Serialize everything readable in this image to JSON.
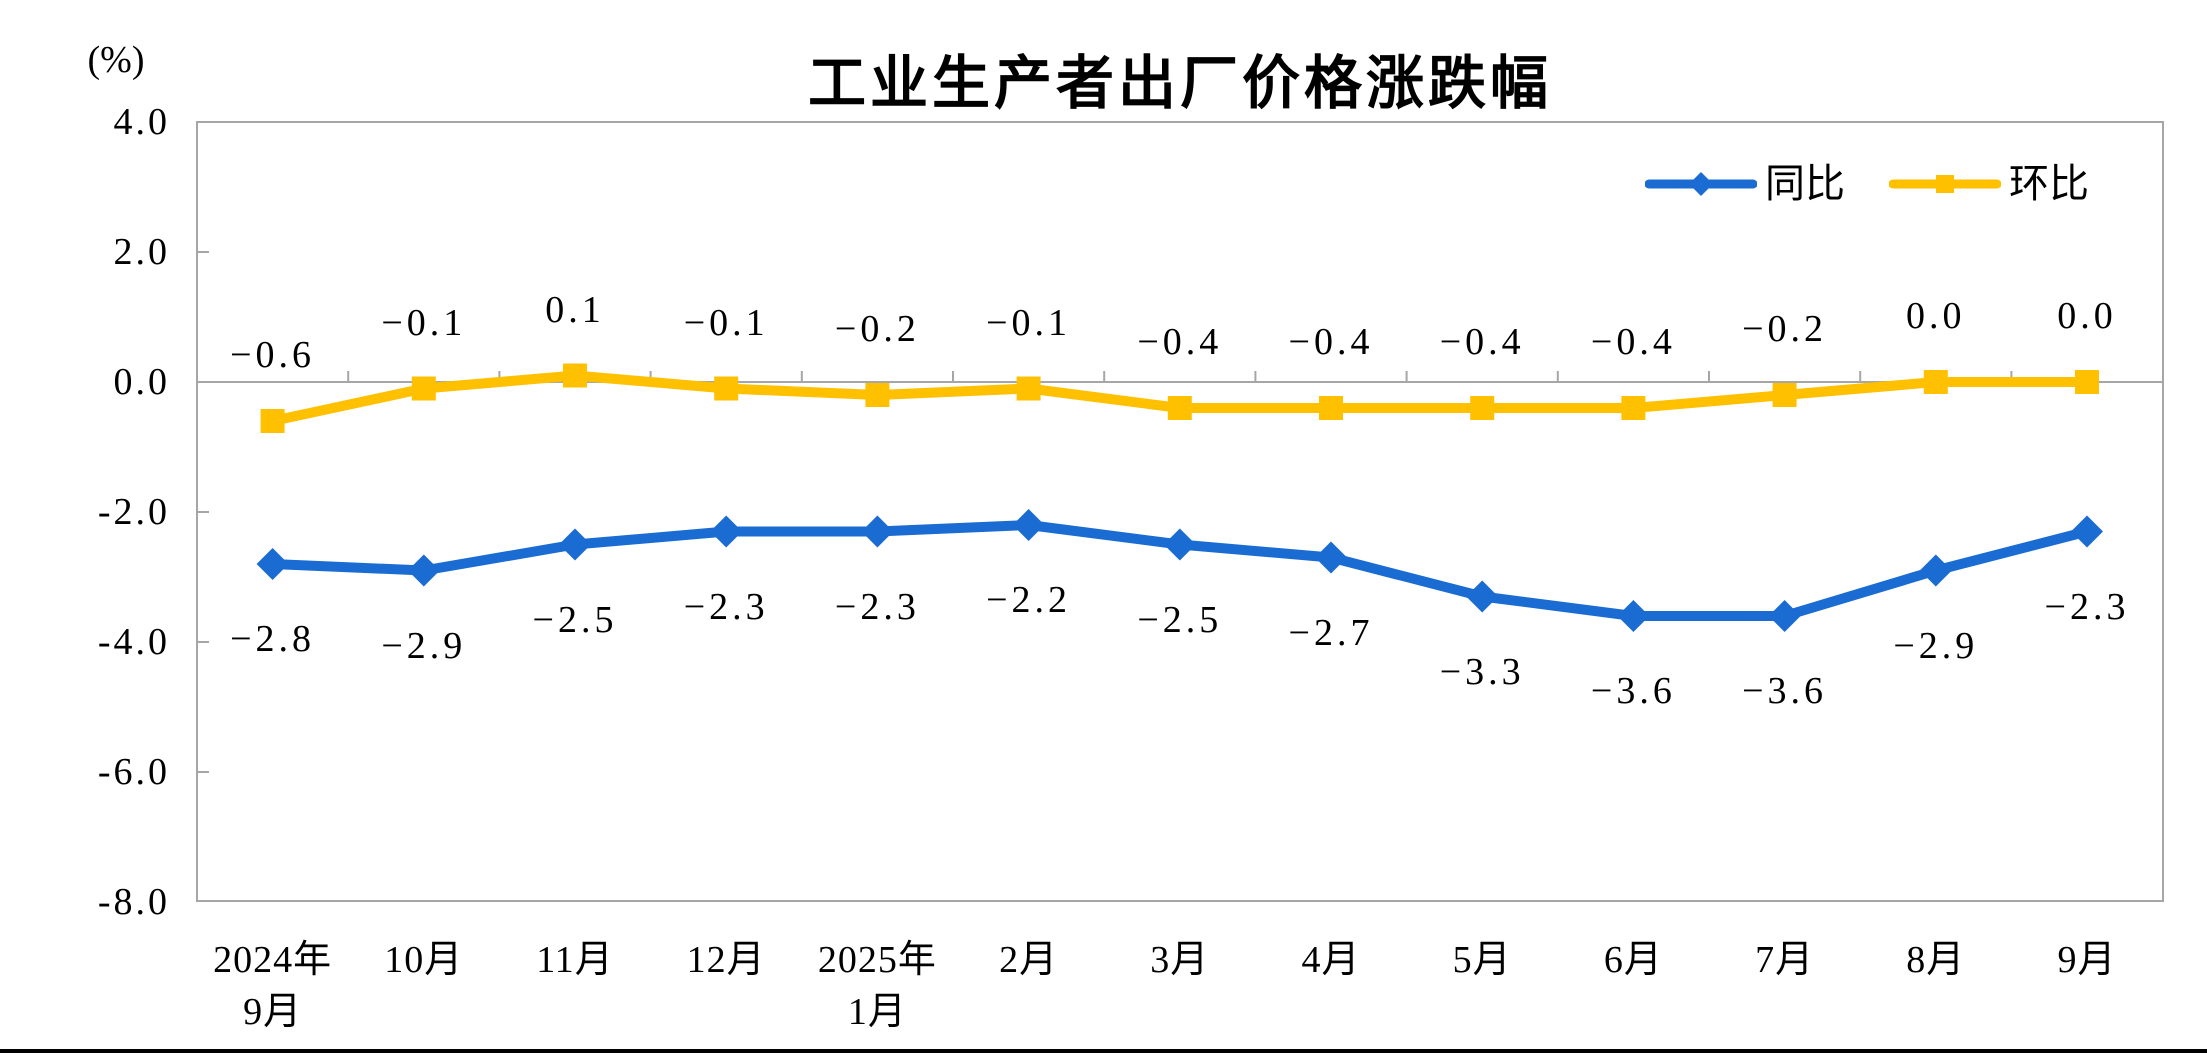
{
  "title": "工业生产者出厂价格涨跌幅",
  "y_axis_unit": "(%)",
  "colors": {
    "yoy": "#1A6BD2",
    "mom": "#FFC000",
    "axis": "#A6A6A6",
    "text": "#000000",
    "bottom_rule": "#000000"
  },
  "legend": {
    "items": [
      {
        "id": "yoy",
        "label": "同比"
      },
      {
        "id": "mom",
        "label": "环比"
      }
    ]
  },
  "chart_data": {
    "type": "line",
    "title": "工业生产者出厂价格涨跌幅",
    "xlabel": "",
    "ylabel": "(%)",
    "categories": [
      "2024年\n9月",
      "10月",
      "11月",
      "12月",
      "2025年\n1月",
      "2月",
      "3月",
      "4月",
      "5月",
      "6月",
      "7月",
      "8月",
      "9月"
    ],
    "series": [
      {
        "id": "yoy",
        "name": "同比",
        "color": "#1A6BD2",
        "marker": "diamond",
        "label_position": "below",
        "values": [
          -2.8,
          -2.9,
          -2.5,
          -2.3,
          -2.3,
          -2.2,
          -2.5,
          -2.7,
          -3.3,
          -3.6,
          -3.6,
          -2.9,
          -2.3
        ],
        "labels": [
          "−2.8",
          "−2.9",
          "−2.5",
          "−2.3",
          "−2.3",
          "−2.2",
          "−2.5",
          "−2.7",
          "−3.3",
          "−3.6",
          "−3.6",
          "−2.9",
          "−2.3"
        ]
      },
      {
        "id": "mom",
        "name": "环比",
        "color": "#FFC000",
        "marker": "square",
        "label_position": "above",
        "values": [
          -0.6,
          -0.1,
          0.1,
          -0.1,
          -0.2,
          -0.1,
          -0.4,
          -0.4,
          -0.4,
          -0.4,
          -0.2,
          0.0,
          0.0
        ],
        "labels": [
          "−0.6",
          "−0.1",
          "0.1",
          "−0.1",
          "−0.2",
          "−0.1",
          "−0.4",
          "−0.4",
          "−0.4",
          "−0.4",
          "−0.2",
          "0.0",
          "0.0"
        ]
      }
    ],
    "ylim": [
      -8.0,
      4.0
    ],
    "y_ticks": [
      "4.0",
      "2.0",
      "0.0",
      "-2.0",
      "-4.0",
      "-6.0",
      "-8.0"
    ],
    "grid": "zero-baseline-only",
    "legend_position": "top-right-inside"
  }
}
